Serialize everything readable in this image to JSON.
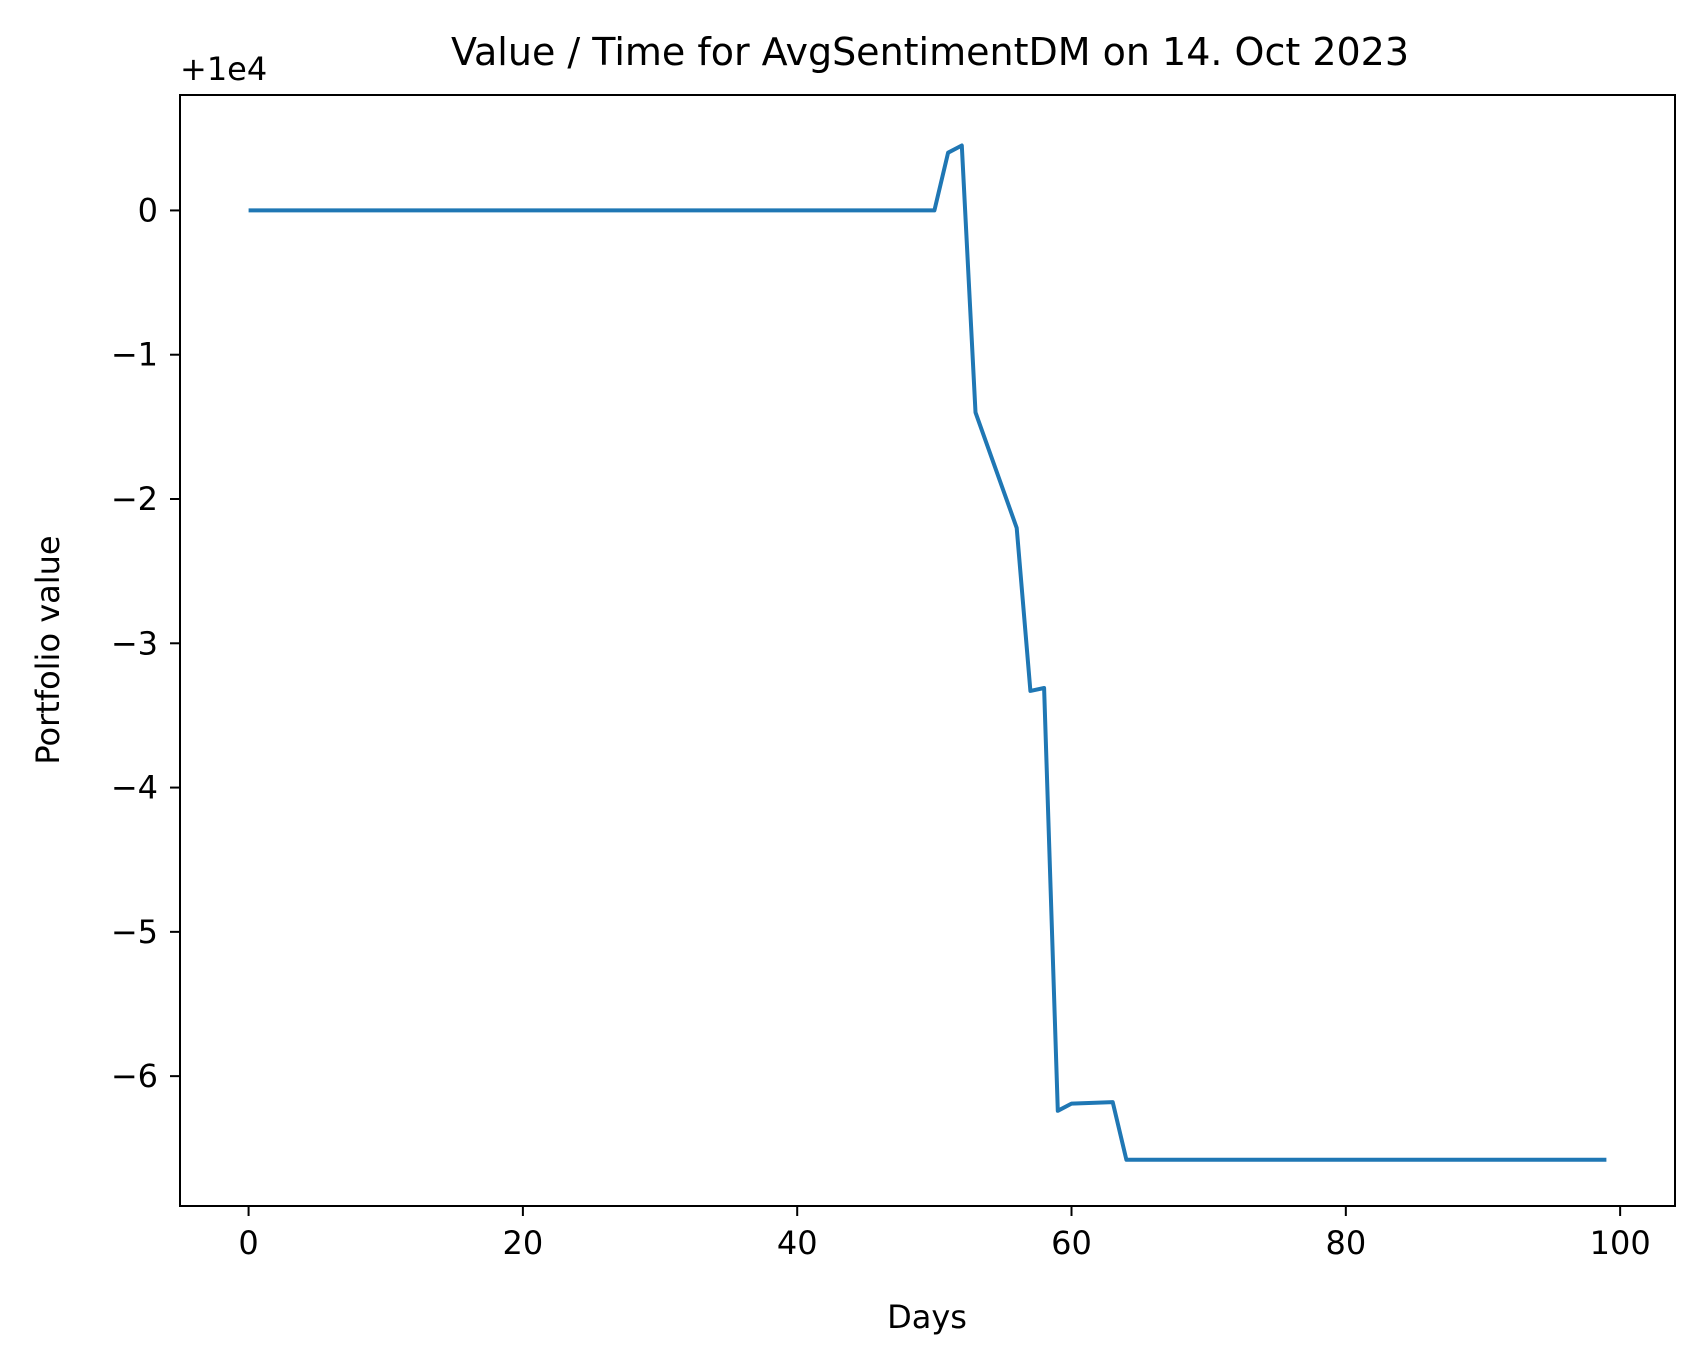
{
  "chart_data": {
    "type": "line",
    "title": "Value / Time for AvgSentimentDM on 14. Oct 2023",
    "xlabel": "Days",
    "ylabel": "Portfolio value",
    "y_offset_label": "+1e4",
    "xlim": [
      -5,
      104
    ],
    "ylim": [
      -6.9,
      0.8
    ],
    "xticks": [
      0,
      20,
      40,
      60,
      80,
      100
    ],
    "xtick_labels": [
      "0",
      "20",
      "40",
      "60",
      "80",
      "100"
    ],
    "yticks": [
      0,
      -1,
      -2,
      -3,
      -4,
      -5,
      -6
    ],
    "ytick_labels": [
      "0",
      "−1",
      "−2",
      "−3",
      "−4",
      "−5",
      "−6"
    ],
    "grid": false,
    "series": [
      {
        "color": "#1f77b4",
        "x": [
          0,
          50,
          51,
          52,
          53,
          56,
          57,
          58,
          59,
          60,
          63,
          64,
          99
        ],
        "y": [
          0,
          0,
          0.4,
          0.45,
          -1.4,
          -2.2,
          -3.33,
          -3.31,
          -6.24,
          -6.19,
          -6.18,
          -6.58,
          -6.58
        ]
      }
    ]
  }
}
